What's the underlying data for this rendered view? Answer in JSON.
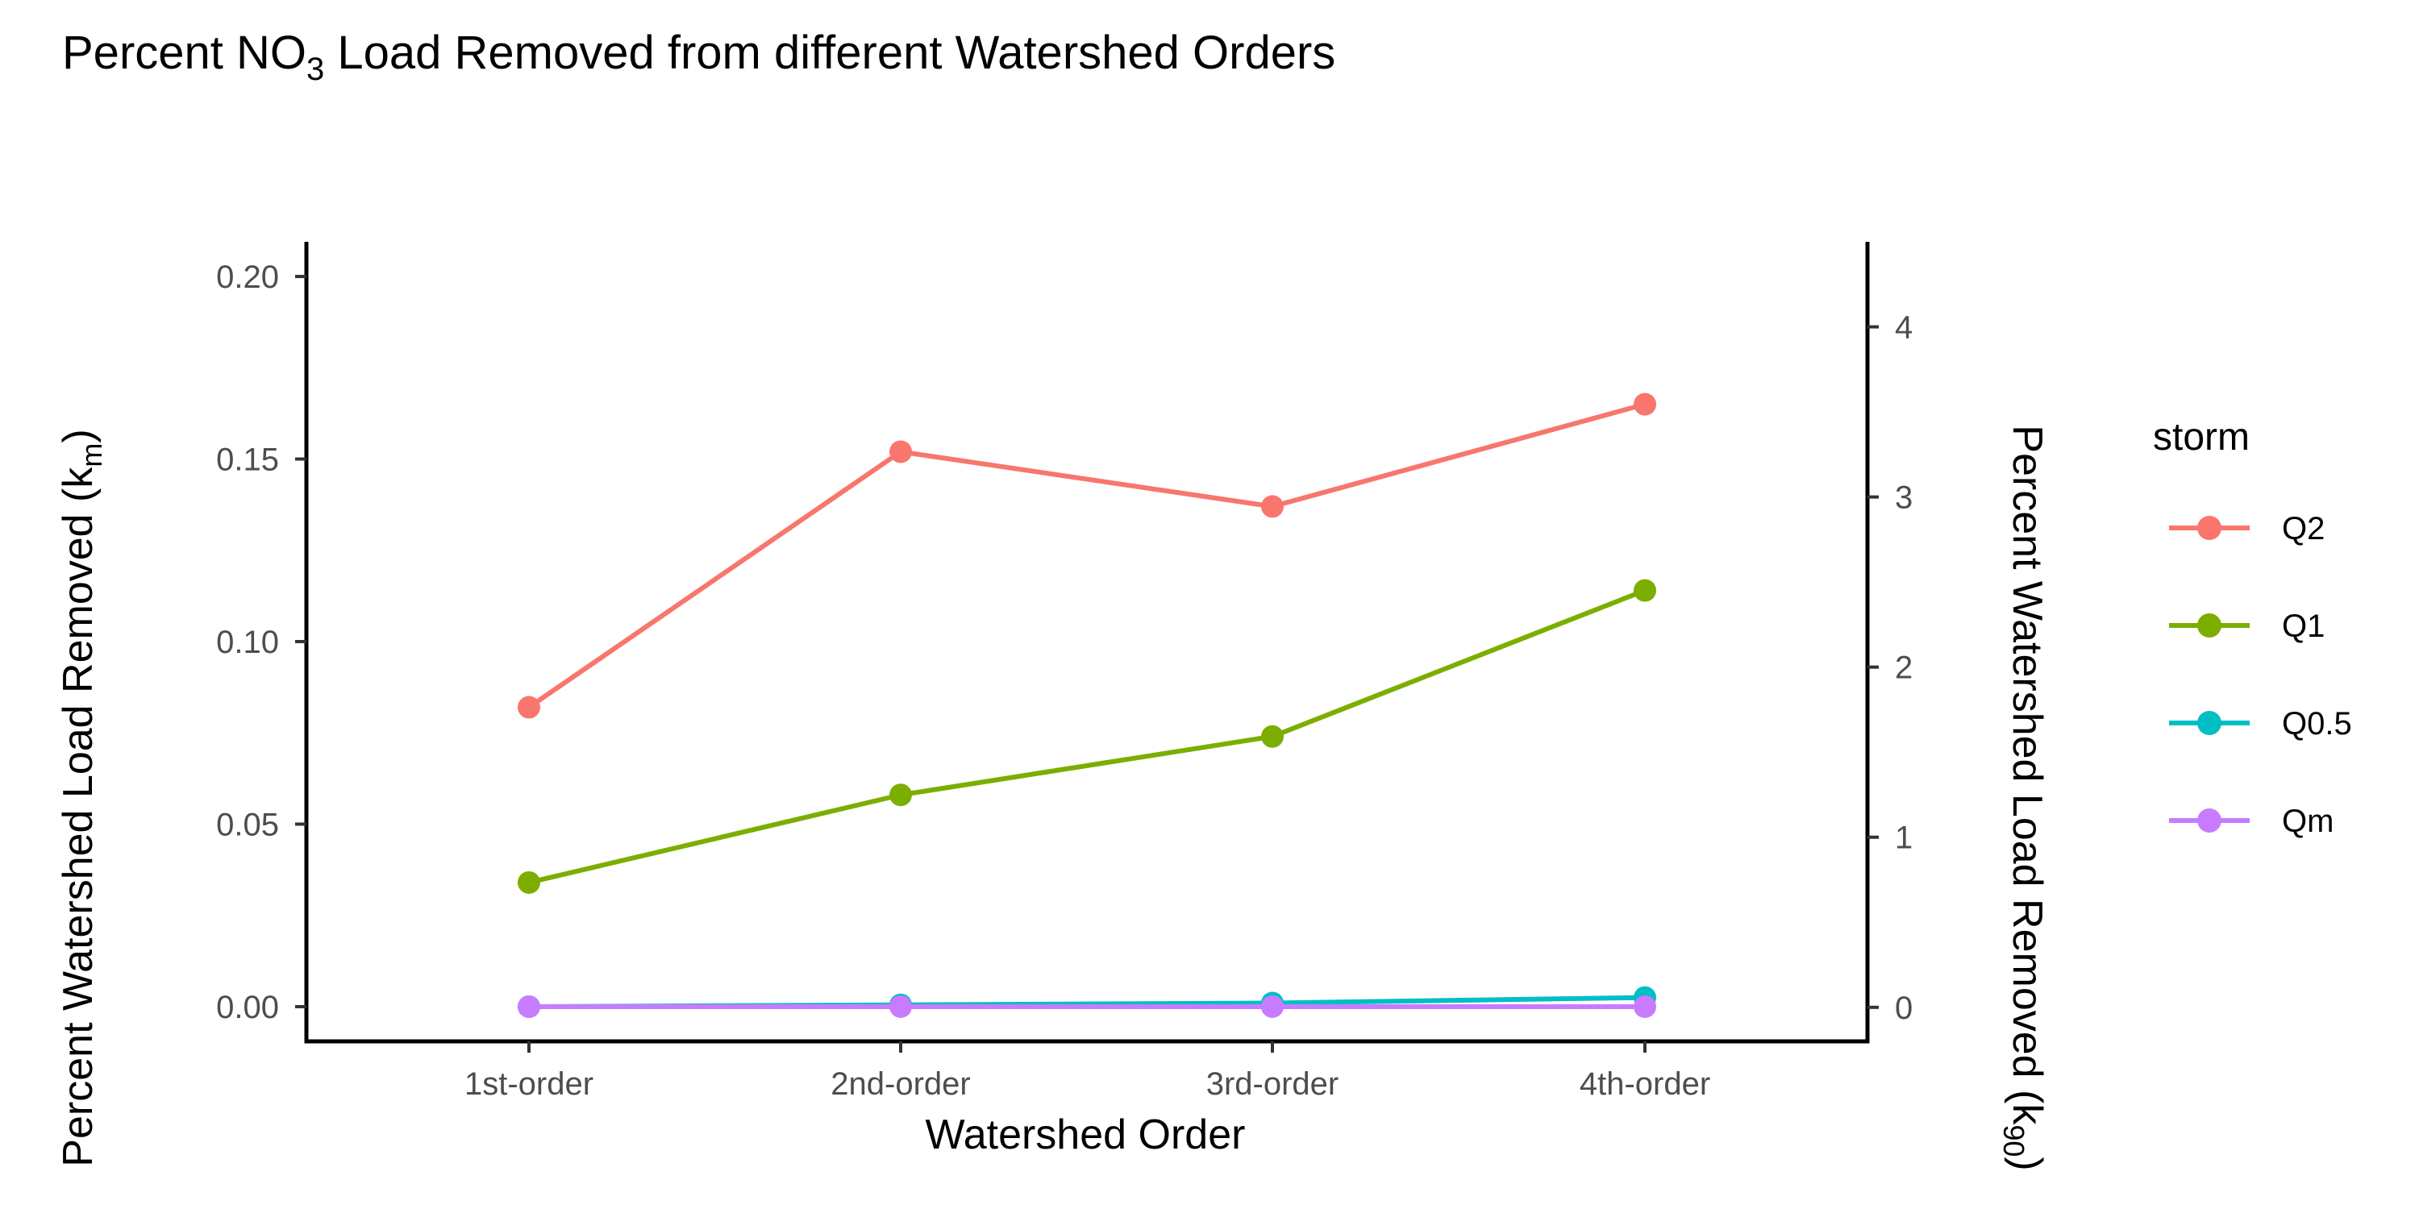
{
  "chart_data": {
    "type": "line",
    "title_prefix": "Percent NO",
    "title_sub": "3",
    "title_suffix": " Load Removed from different Watershed Orders",
    "xlabel": "Watershed Order",
    "ylabel_left": "Percent Watershed Load Removed (k",
    "ylabel_left_sub": "m",
    "ylabel_left_close": ")",
    "ylabel_right": "Percent Watershed Load Removed (k",
    "ylabel_right_sub": "90",
    "ylabel_right_close": ")",
    "categories": [
      "1st-order",
      "2nd-order",
      "3rd-order",
      "4th-order"
    ],
    "ylim_left": [
      -0.0095,
      0.2095
    ],
    "yticks_left": [
      "0.00",
      "0.05",
      "0.10",
      "0.15",
      "0.20"
    ],
    "ylim_right": [
      -0.2,
      4.5
    ],
    "yticks_right": [
      "0",
      "1",
      "2",
      "3",
      "4"
    ],
    "legend": {
      "title": "storm",
      "position": "right"
    },
    "series": [
      {
        "name": "Q2",
        "color": "#F8766D",
        "values": [
          0.082,
          0.152,
          0.137,
          0.165
        ]
      },
      {
        "name": "Q1",
        "color": "#7CAE00",
        "values": [
          0.034,
          0.058,
          0.074,
          0.114
        ]
      },
      {
        "name": "Q0.5",
        "color": "#00BFC4",
        "values": [
          0.0,
          0.0005,
          0.001,
          0.0025
        ]
      },
      {
        "name": "Qm",
        "color": "#C77CFF",
        "values": [
          0.0,
          0.0,
          0.0,
          0.0
        ]
      }
    ],
    "grid": false
  }
}
